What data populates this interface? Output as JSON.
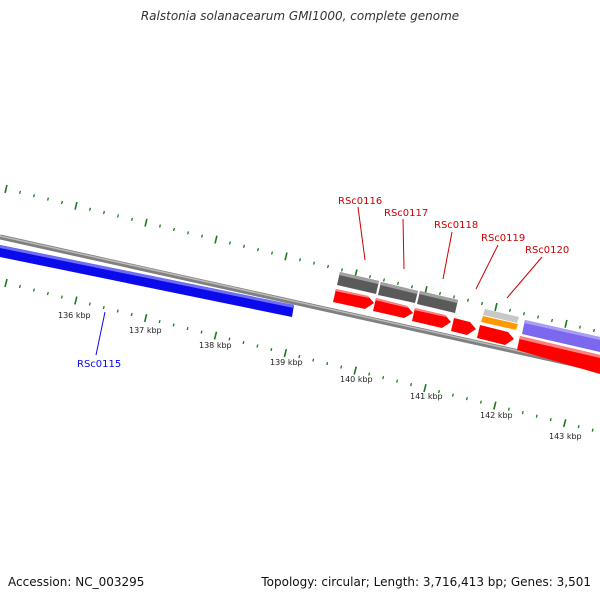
{
  "title": "Ralstonia solanacearum GMI1000, complete genome",
  "footer": {
    "accession": "Accession: NC_003295",
    "summary": "Topology: circular; Length: 3,716,413 bp; Genes: 3,501"
  },
  "ticks": [
    "136 kbp",
    "137 kbp",
    "138 kbp",
    "139 kbp",
    "140 kbp",
    "141 kbp",
    "142 kbp",
    "143 kbp"
  ],
  "genes": {
    "forward": [
      {
        "label": "RSc0115",
        "color": "#0a0aeb"
      }
    ],
    "reverse": [
      {
        "label": "RSc0116",
        "color": "#cc0000"
      },
      {
        "label": "RSc0117",
        "color": "#cc0000"
      },
      {
        "label": "RSc0118",
        "color": "#cc0000"
      },
      {
        "label": "RSc0119",
        "color": "#cc0000"
      },
      {
        "label": "RSc0120",
        "color": "#cc0000"
      }
    ]
  },
  "colors": {
    "backbone": "#808080",
    "tick_marks": "#1a7a1a",
    "gene_red": "#ff0000",
    "gene_dark": "#666666",
    "gene_orange": "#ff9900",
    "gene_light": "#c8c8c8",
    "gene_purple": "#7b68ee",
    "gene_blue": "#0a0aeb"
  }
}
